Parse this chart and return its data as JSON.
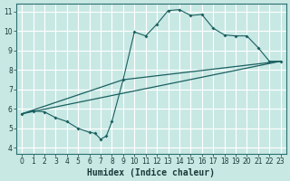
{
  "title": "",
  "xlabel": "Humidex (Indice chaleur)",
  "ylabel": "",
  "xlim": [
    -0.5,
    23.5
  ],
  "ylim": [
    3.7,
    11.4
  ],
  "xticks": [
    0,
    1,
    2,
    3,
    4,
    5,
    6,
    7,
    8,
    9,
    10,
    11,
    12,
    13,
    14,
    15,
    16,
    17,
    18,
    19,
    20,
    21,
    22,
    23
  ],
  "yticks": [
    4,
    5,
    6,
    7,
    8,
    9,
    10,
    11
  ],
  "bg_color": "#c8e8e4",
  "line_color": "#1a6060",
  "grid_color": "#ffffff",
  "series1": [
    [
      0,
      5.75
    ],
    [
      1,
      5.9
    ],
    [
      2,
      5.85
    ],
    [
      3,
      5.55
    ],
    [
      4,
      5.35
    ],
    [
      5,
      5.0
    ],
    [
      6,
      4.8
    ],
    [
      6.5,
      4.75
    ],
    [
      7,
      4.45
    ],
    [
      7.5,
      4.6
    ],
    [
      8,
      5.35
    ],
    [
      9,
      7.5
    ],
    [
      10,
      9.95
    ],
    [
      11,
      9.75
    ],
    [
      12,
      10.35
    ],
    [
      13,
      11.05
    ],
    [
      14,
      11.1
    ],
    [
      15,
      10.8
    ],
    [
      16,
      10.85
    ],
    [
      17,
      10.15
    ],
    [
      18,
      9.8
    ],
    [
      19,
      9.75
    ],
    [
      20,
      9.75
    ],
    [
      21,
      9.15
    ],
    [
      22,
      8.45
    ],
    [
      23,
      8.45
    ]
  ],
  "series2": [
    [
      0,
      5.75
    ],
    [
      23,
      8.45
    ]
  ],
  "series3": [
    [
      0,
      5.75
    ],
    [
      9,
      7.5
    ],
    [
      23,
      8.45
    ]
  ],
  "xlabel_fontsize": 7,
  "tick_fontsize": 5.5
}
